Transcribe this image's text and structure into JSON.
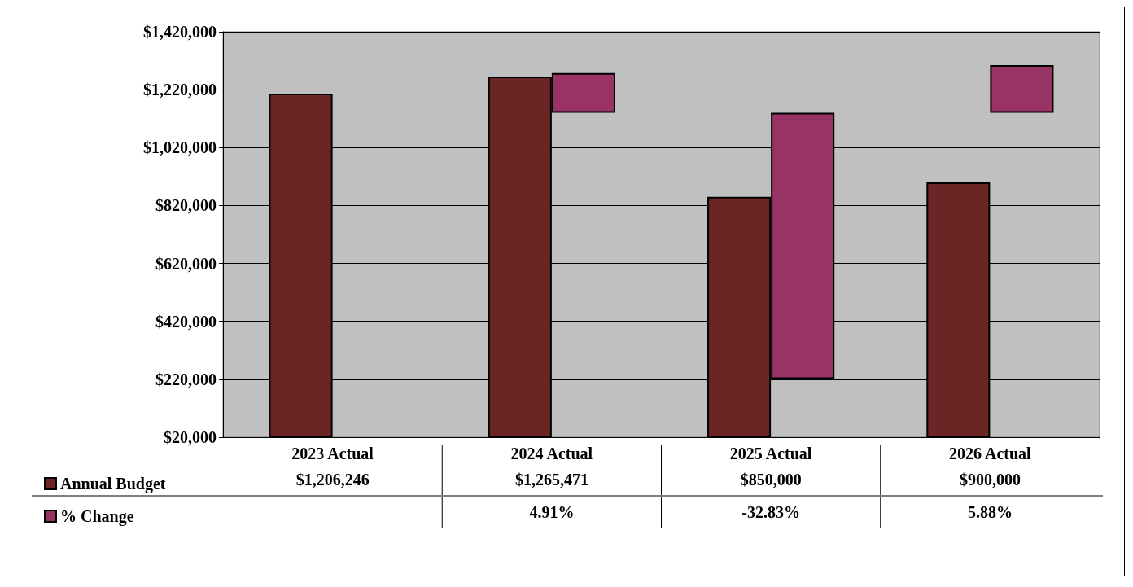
{
  "chart_data": {
    "type": "bar",
    "categories": [
      "2023 Actual",
      "2024 Actual",
      "2025 Actual",
      "2026 Actual"
    ],
    "series": [
      {
        "name": "Annual Budget",
        "color": "#6b2525",
        "values": [
          1206246,
          1265471,
          850000,
          900000
        ],
        "value_labels": [
          "$1,206,246",
          "$1,265,471",
          "$850,000",
          "$900,000"
        ]
      },
      {
        "name": "% Change",
        "color": "#993366",
        "axis": "y2",
        "values": [
          null,
          4.91,
          -32.83,
          5.88
        ],
        "value_labels": [
          null,
          "4.91%",
          "-32.83%",
          "5.88%"
        ]
      }
    ],
    "ylim": [
      20000,
      1420000
    ],
    "yticks": [
      {
        "value": 20000,
        "label": "$20,000"
      },
      {
        "value": 220000,
        "label": "$220,000"
      },
      {
        "value": 420000,
        "label": "$420,000"
      },
      {
        "value": 620000,
        "label": "$620,000"
      },
      {
        "value": 820000,
        "label": "$820,000"
      },
      {
        "value": 1020000,
        "label": "$1,020,000"
      },
      {
        "value": 1220000,
        "label": "$1,220,000"
      },
      {
        "value": 1420000,
        "label": "$1,420,000"
      }
    ],
    "grid": "y",
    "legend": "bottom left"
  }
}
